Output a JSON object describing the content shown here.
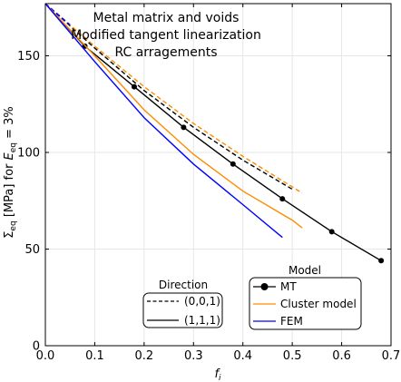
{
  "chart_data": {
    "type": "line",
    "xlabel_base": "f",
    "xlabel_sub": "i",
    "ylabel": {
      "sigma": "Σ",
      "sub1": "eq",
      "units": " [MPa]   for ",
      "e": "E",
      "sub2": "eq",
      "tail": " = 3%"
    },
    "xlim": [
      0.0,
      0.7
    ],
    "ylim": [
      0,
      177
    ],
    "xticks": [
      0.0,
      0.1,
      0.2,
      0.3,
      0.4,
      0.5,
      0.6,
      0.7
    ],
    "xtick_labels": [
      "0.0",
      "0.1",
      "0.2",
      "0.3",
      "0.4",
      "0.5",
      "0.6",
      "0.7"
    ],
    "yticks": [
      0,
      50,
      100,
      150
    ],
    "ytick_labels": [
      "0",
      "50",
      "100",
      "150"
    ],
    "grid": true,
    "annotations": [
      "Metal matrix and voids",
      "Modified tangent  linearization",
      "RC  arragements"
    ],
    "colors": {
      "MT": "#000000",
      "Cluster model": "#ff8c00",
      "FEM": "#0000ff"
    },
    "series": [
      {
        "name": "MT (0,0,1)",
        "model": "MT",
        "direction": "(0,0,1)",
        "style": "dashed",
        "color": "#000000",
        "x": [
          0.0,
          0.1,
          0.2,
          0.3,
          0.4,
          0.5
        ],
        "y": [
          177,
          154,
          132,
          113,
          96,
          81
        ]
      },
      {
        "name": "Cluster model (0,0,1)",
        "model": "Cluster model",
        "direction": "(0,0,1)",
        "style": "dashed",
        "color": "#ff8c00",
        "x": [
          0.0,
          0.1,
          0.2,
          0.3,
          0.4,
          0.52
        ],
        "y": [
          177,
          155,
          134,
          115,
          98,
          79
        ]
      },
      {
        "name": "FEM (0,0,1)",
        "model": "FEM",
        "direction": "(0,0,1)",
        "style": "dashed",
        "color": "#0000ff",
        "x": [
          0.0,
          0.05
        ],
        "y": [
          177,
          166
        ]
      },
      {
        "name": "MT (1,1,1)",
        "model": "MT",
        "direction": "(1,1,1)",
        "style": "solid",
        "color": "#000000",
        "markers": true,
        "x": [
          0.0,
          0.08,
          0.18,
          0.28,
          0.38,
          0.48,
          0.58,
          0.68
        ],
        "y": [
          177,
          155,
          134,
          113,
          94,
          76,
          59,
          44
        ]
      },
      {
        "name": "Cluster model (1,1,1)",
        "model": "Cluster model",
        "direction": "(1,1,1)",
        "style": "solid",
        "color": "#ff8c00",
        "x": [
          0.0,
          0.1,
          0.2,
          0.3,
          0.4,
          0.5,
          0.52
        ],
        "y": [
          177,
          150,
          122,
          99,
          80,
          65,
          61
        ]
      },
      {
        "name": "FEM (1,1,1)",
        "model": "FEM",
        "direction": "(1,1,1)",
        "style": "solid",
        "color": "#0000ff",
        "x": [
          0.0,
          0.1,
          0.2,
          0.3,
          0.4,
          0.48
        ],
        "y": [
          177,
          147,
          118,
          94,
          73,
          56
        ]
      }
    ],
    "legends": {
      "direction": {
        "title": "Direction",
        "entries": [
          {
            "label": "(0,0,1)",
            "style": "dashed"
          },
          {
            "label": "(1,1,1)",
            "style": "solid"
          }
        ]
      },
      "model": {
        "title": "Model",
        "entries": [
          {
            "label": "MT",
            "color": "#000000",
            "marker": true
          },
          {
            "label": "Cluster model",
            "color": "#ff8c00",
            "marker": false
          },
          {
            "label": "FEM",
            "color": "#0000ff",
            "marker": false
          }
        ]
      }
    }
  }
}
